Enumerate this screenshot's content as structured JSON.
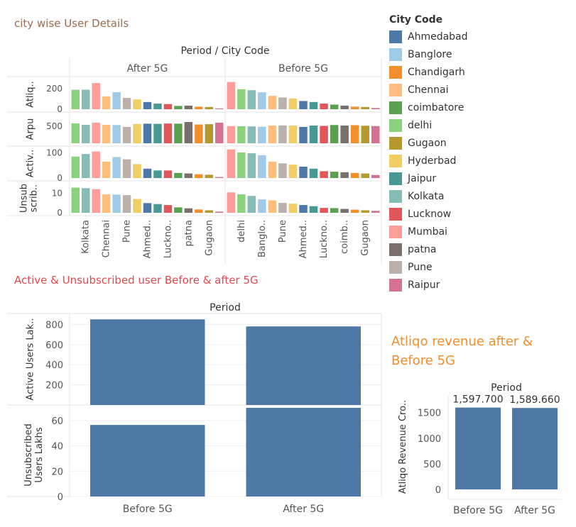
{
  "titles": {
    "city": "city wise User Details",
    "users": "Active & Unsubscribed user Before & after 5G",
    "revenue": "Atliqo revenue after & Before 5G"
  },
  "legend": {
    "title": "City Code",
    "items": [
      {
        "name": "Ahmedabad",
        "color": "#4e79a7"
      },
      {
        "name": "Banglore",
        "color": "#a0cbe8"
      },
      {
        "name": "Chandigarh",
        "color": "#f28e2b"
      },
      {
        "name": "Chennai",
        "color": "#ffbe7d"
      },
      {
        "name": "coimbatore",
        "color": "#59a14f"
      },
      {
        "name": "delhi",
        "color": "#8cd17d"
      },
      {
        "name": "Gugaon",
        "color": "#b6992d"
      },
      {
        "name": "Hyderbad",
        "color": "#f1ce63"
      },
      {
        "name": "Jaipur",
        "color": "#499894"
      },
      {
        "name": "Kolkata",
        "color": "#86bcb6"
      },
      {
        "name": "Lucknow",
        "color": "#e15759"
      },
      {
        "name": "Mumbai",
        "color": "#ff9d9a"
      },
      {
        "name": "patna",
        "color": "#79706e"
      },
      {
        "name": "Pune",
        "color": "#bab0ac"
      },
      {
        "name": "Raipur",
        "color": "#d37295"
      }
    ]
  },
  "chart_data": [
    {
      "type": "bar",
      "header": "Period  /  City Code",
      "panels": [
        "After 5G",
        "Before 5G"
      ],
      "categories": [
        [
          "delhi",
          "Kolkata",
          "Mumbai",
          "Chennai",
          "Banglore",
          "Pune",
          "Hyderbad",
          "Ahmedabad",
          "Jaipur",
          "Lucknow",
          "coimbatore",
          "patna",
          "Chandigarh",
          "Gugaon",
          "Raipur"
        ],
        [
          "Mumbai",
          "delhi",
          "Kolkata",
          "Banglore",
          "Chennai",
          "Pune",
          "Hyderbad",
          "Ahmedabad",
          "Jaipur",
          "Lucknow",
          "coimbatore",
          "patna",
          "Chandigarh",
          "Gugaon",
          "Raipur"
        ]
      ],
      "tick_labels": [
        [
          "Kolkata",
          "Chennai",
          "Pune",
          "Ahmed..",
          "Luckno..",
          "patna",
          "Gugaon"
        ],
        [
          "delhi",
          "Banglo..",
          "Pune",
          "Ahmed..",
          "Luckno..",
          "coimb..",
          "Gugaon"
        ]
      ],
      "rows": [
        {
          "label": "Atliq..",
          "ylim": [
            0,
            290
          ],
          "ticks": [
            0,
            200
          ],
          "values": [
            [
              190,
              190,
              255,
              125,
              165,
              110,
              95,
              70,
              55,
              50,
              32,
              35,
              25,
              22,
              8
            ],
            [
              265,
              195,
              185,
              165,
              130,
              115,
              105,
              80,
              70,
              55,
              45,
              35,
              25,
              22,
              12
            ]
          ]
        },
        {
          "label": "Arpu",
          "ylim": [
            0,
            840
          ],
          "ticks": [
            500
          ],
          "values": [
            [
              590,
              545,
              610,
              545,
              540,
              485,
              570,
              580,
              575,
              585,
              580,
              630,
              555,
              565,
              610
            ],
            [
              510,
              505,
              500,
              490,
              525,
              530,
              525,
              485,
              525,
              515,
              540,
              525,
              535,
              520,
              510
            ]
          ]
        },
        {
          "label": "Activ..",
          "ylim": [
            0,
            115
          ],
          "ticks": [
            0,
            100
          ],
          "values": [
            [
              85,
              95,
              105,
              65,
              83,
              74,
              55,
              37,
              30,
              30,
              20,
              18,
              15,
              13,
              4
            ],
            [
              113,
              101,
              98,
              90,
              65,
              58,
              53,
              45,
              37,
              27,
              25,
              23,
              20,
              18,
              12
            ]
          ]
        },
        {
          "label": "Unsub scrib..",
          "ylim": [
            0,
            15
          ],
          "ticks": [
            0,
            10
          ],
          "values": [
            [
              13,
              12.7,
              12.2,
              9.5,
              9.4,
              9.1,
              7.1,
              5,
              4.5,
              4,
              2.8,
              2.3,
              1.7,
              1.3,
              0.6
            ],
            [
              10.5,
              9.5,
              8.7,
              6.9,
              6.4,
              5.1,
              4.7,
              4,
              3.4,
              2.5,
              2.4,
              2,
              1.6,
              1.3,
              1
            ]
          ]
        }
      ]
    },
    {
      "type": "bar",
      "header": "Period",
      "categories": [
        "Before 5G",
        "After 5G"
      ],
      "rows": [
        {
          "label": "Active Users Lak..",
          "ylim": [
            0,
            880
          ],
          "ticks": [
            200,
            400,
            600,
            800
          ],
          "values": [
            850,
            780
          ]
        },
        {
          "label": "Unsubscribed Users Lakhs",
          "ylim": [
            0,
            70
          ],
          "ticks": [
            0,
            20,
            40,
            60
          ],
          "values": [
            56.5,
            70
          ]
        }
      ],
      "color": "#4e79a7"
    },
    {
      "type": "bar",
      "header": "Period",
      "ylabel": "Atliqo Revenue Cro..",
      "categories": [
        "Before 5G",
        "After 5G"
      ],
      "values": [
        1597.7,
        1589.66
      ],
      "data_labels": [
        "1,597.700",
        "1,589.660"
      ],
      "ylim": [
        0,
        1800
      ],
      "ticks": [
        0,
        500,
        1000,
        1500
      ],
      "color": "#4e79a7"
    }
  ]
}
